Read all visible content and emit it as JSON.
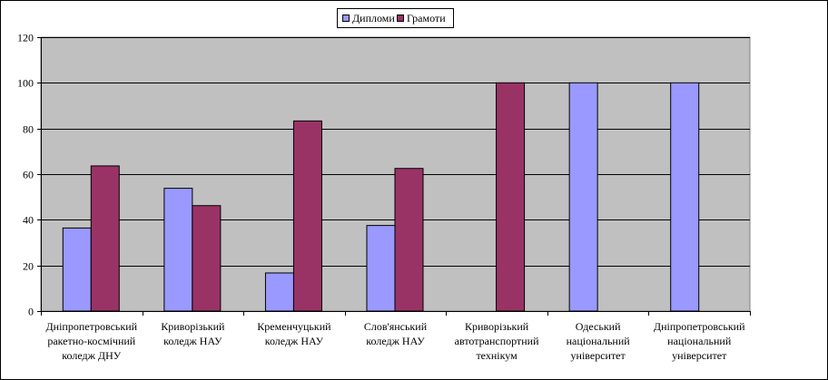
{
  "chart_data": {
    "type": "bar",
    "title": "",
    "xlabel": "",
    "ylabel": "",
    "ylim": [
      0,
      120
    ],
    "yticks": [
      0,
      20,
      40,
      60,
      80,
      100,
      120
    ],
    "grid": true,
    "legend": "top-center",
    "categories": [
      [
        "Дніпропетровський",
        "ракетно-космічний",
        "коледж ДНУ"
      ],
      [
        "Криворізький",
        "коледж НАУ"
      ],
      [
        "Кременчуцький",
        "коледж НАУ"
      ],
      [
        "Слов'янський",
        "коледж НАУ"
      ],
      [
        "Криворізький",
        "автотранспортний",
        "технікум"
      ],
      [
        "Одеський",
        "національний",
        "університет"
      ],
      [
        "Дніпропетровський",
        "національний",
        "університет"
      ]
    ],
    "series": [
      {
        "name": "Дипломи",
        "color": "#9999FF",
        "values": [
          36.4,
          53.8,
          16.7,
          37.5,
          0,
          100,
          100
        ]
      },
      {
        "name": "Грамоти",
        "color": "#993366",
        "values": [
          63.6,
          46.2,
          83.3,
          62.5,
          100,
          0,
          0
        ]
      }
    ],
    "plot_background": "#C0C0C0",
    "gridline_color": "#000000"
  }
}
